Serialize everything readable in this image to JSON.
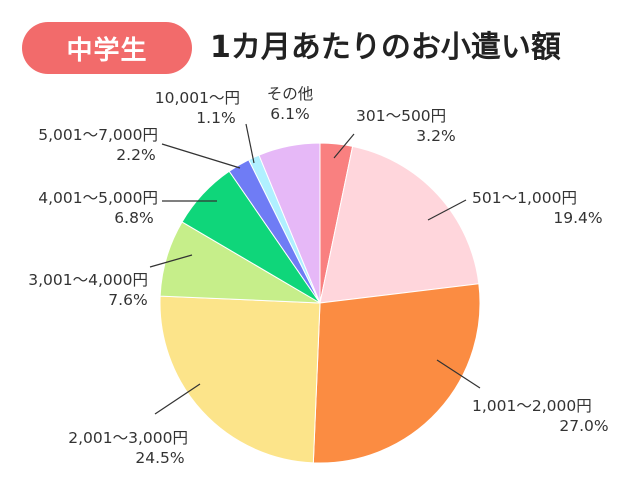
{
  "header": {
    "badge": "中学生",
    "title": "1カ月あたりのお小遣い額"
  },
  "chart_data": {
    "type": "pie",
    "title": "1カ月あたりのお小遣い額",
    "slices": [
      {
        "label": "301～500円",
        "value": 3.2,
        "display": "3.2%",
        "color": "#f98080"
      },
      {
        "label": "501～1,000円",
        "value": 19.4,
        "display": "19.4%",
        "color": "#ffd6dc"
      },
      {
        "label": "1,001～2,000円",
        "value": 27.0,
        "display": "27.0%",
        "color": "#fb8c42"
      },
      {
        "label": "2,001～3,000円",
        "value": 24.5,
        "display": "24.5%",
        "color": "#fce48a"
      },
      {
        "label": "3,001～4,000円",
        "value": 7.6,
        "display": "7.6%",
        "color": "#c6ee8a"
      },
      {
        "label": "4,001～5,000円",
        "value": 6.8,
        "display": "6.8%",
        "color": "#0fd67a"
      },
      {
        "label": "5,001～7,000円",
        "value": 2.2,
        "display": "2.2%",
        "color": "#6f7cf5"
      },
      {
        "label": "10,001～円",
        "value": 1.1,
        "display": "1.1%",
        "color": "#b0f0ff"
      },
      {
        "label": "その他",
        "value": 6.1,
        "display": "6.1%",
        "color": "#e6b8f7"
      }
    ]
  }
}
